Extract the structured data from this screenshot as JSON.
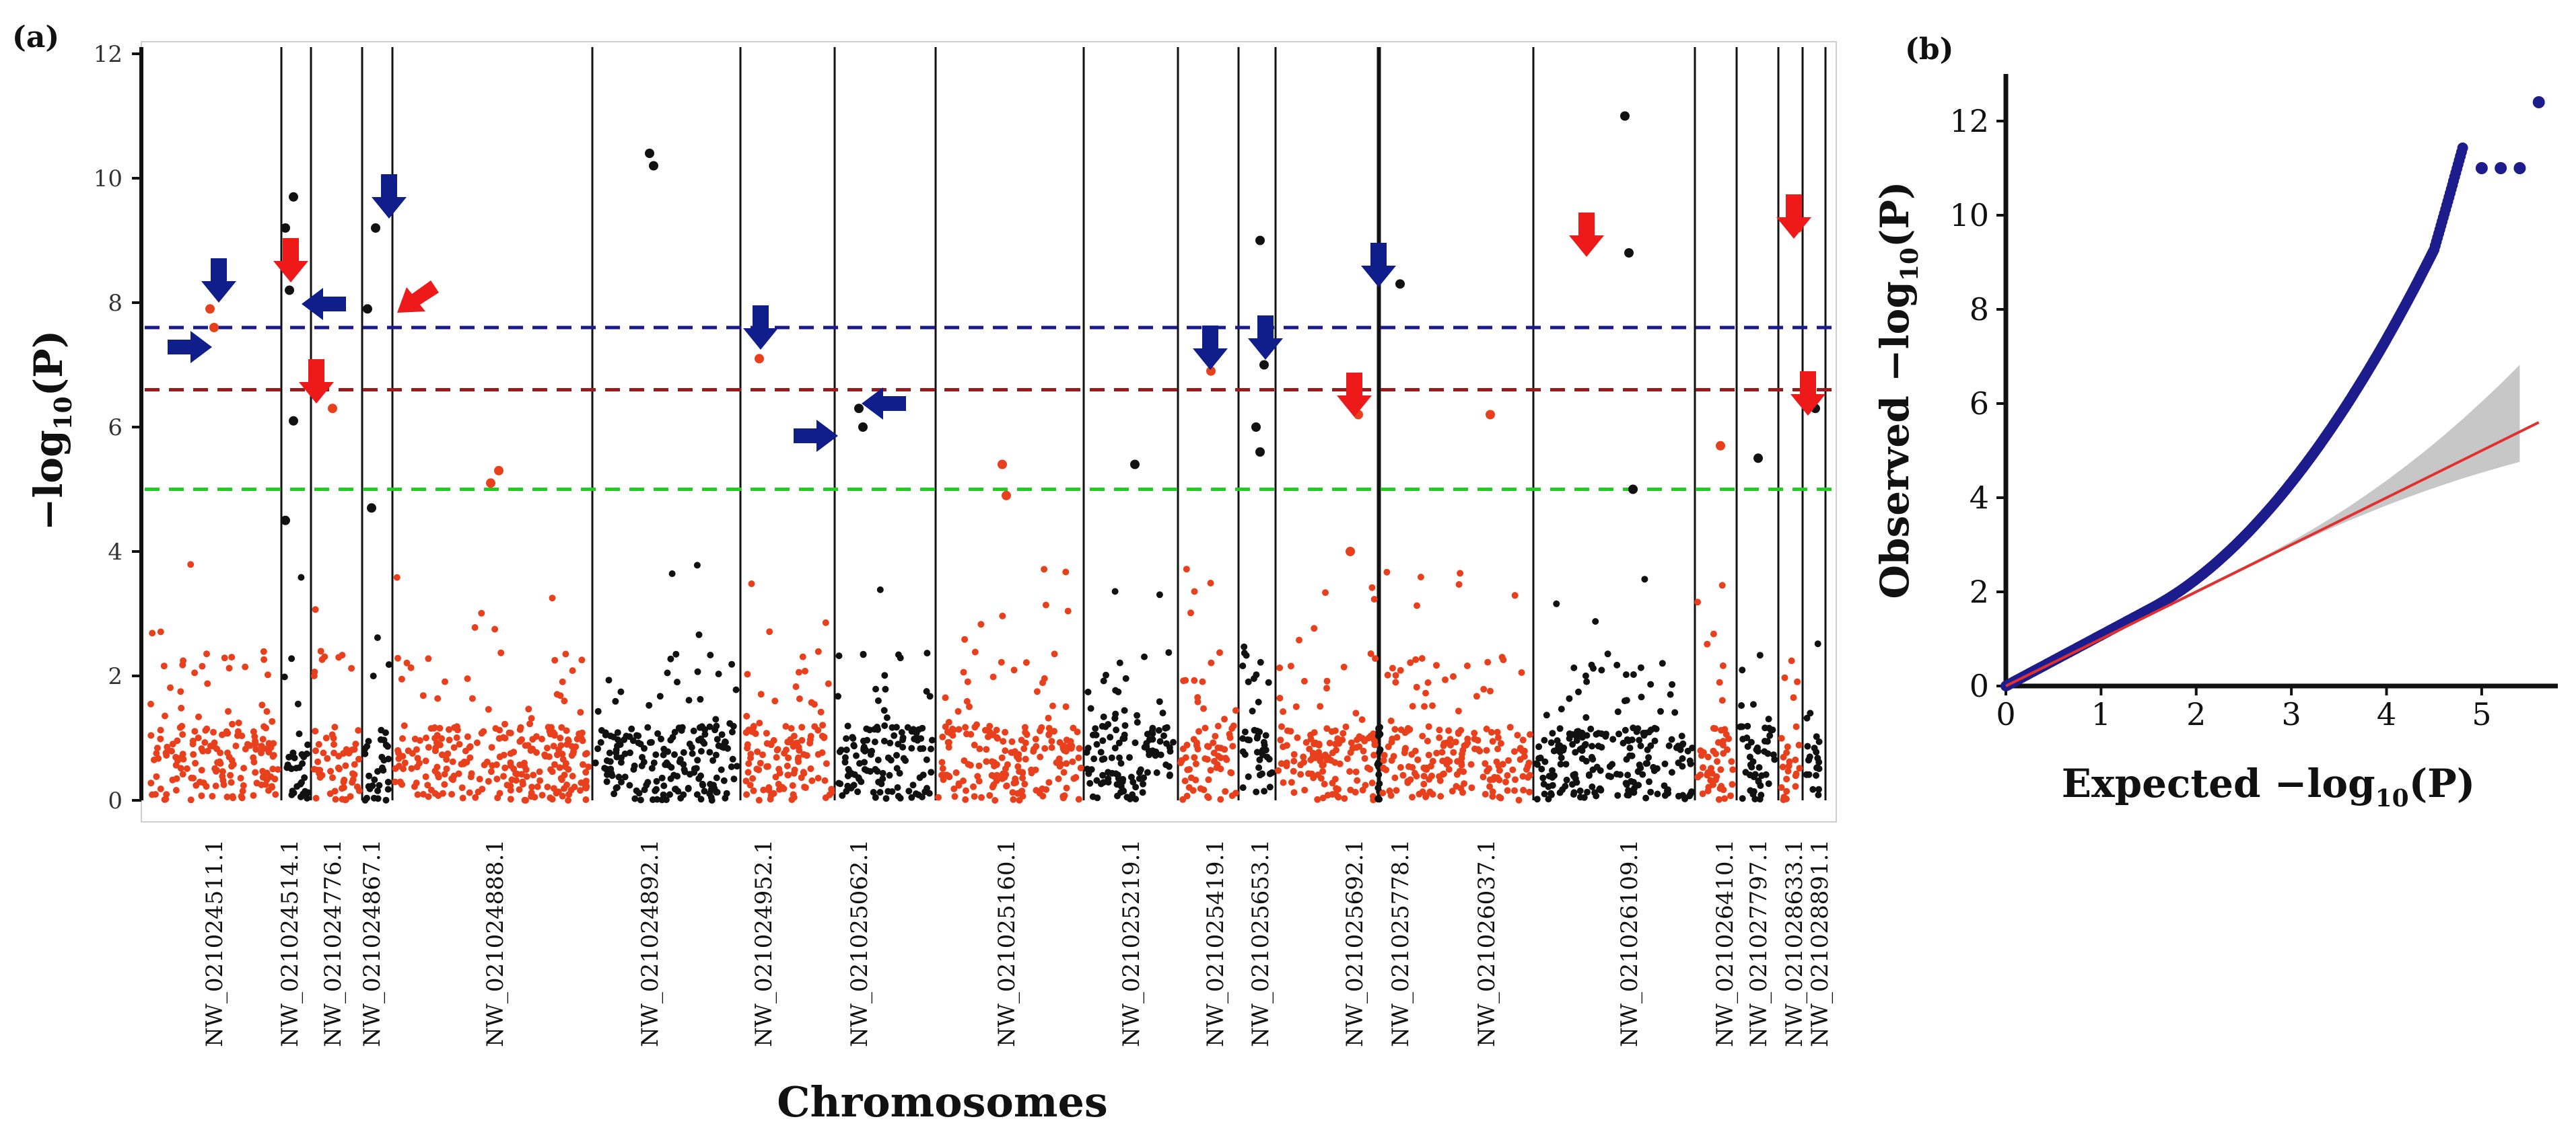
{
  "panels": {
    "a_label": "(a)",
    "b_label": "(b)"
  },
  "manhattan": {
    "ylabel": "−log10(P)",
    "xlabel": "Chromosomes",
    "ylim": [
      0,
      12
    ],
    "yticks": [
      0,
      2,
      4,
      6,
      8,
      10,
      12
    ],
    "thresholds": [
      {
        "name": "blue-threshold",
        "value": 7.6,
        "color": "#1a1a8c"
      },
      {
        "name": "red-threshold",
        "value": 6.6,
        "color": "#9b1b1b"
      },
      {
        "name": "green-threshold",
        "value": 5.0,
        "color": "#22cc22"
      }
    ],
    "colors": {
      "odd": "#e8401c",
      "even": "#111111",
      "blue_arrow": "#0f1e8a",
      "red_arrow": "#ee1a1a"
    },
    "chromosomes": [
      "NW_021024511.1",
      "NW_021024514.1",
      "NW_021024776.1",
      "NW_021024867.1",
      "NW_021024888.1",
      "NW_021024892.1",
      "NW_021024952.1",
      "NW_021025062.1",
      "NW_021025160.1",
      "NW_021025219.1",
      "NW_021025419.1",
      "NW_021025653.1",
      "NW_021025692.1",
      "NW_021025778.1",
      "NW_021026037.1",
      "NW_021026109.1",
      "NW_021026410.1",
      "NW_021027797.1",
      "NW_021028633.1",
      "NW_021028891.1"
    ],
    "significant_points": [
      {
        "chr": "NW_021024511.1",
        "y": 7.9
      },
      {
        "chr": "NW_021024511.1",
        "y": 7.6
      },
      {
        "chr": "NW_021024514.1",
        "y": 9.7
      },
      {
        "chr": "NW_021024514.1",
        "y": 9.2
      },
      {
        "chr": "NW_021024514.1",
        "y": 8.2
      },
      {
        "chr": "NW_021024514.1",
        "y": 6.1
      },
      {
        "chr": "NW_021024514.1",
        "y": 4.5
      },
      {
        "chr": "NW_021024776.1",
        "y": 6.3
      },
      {
        "chr": "NW_021024867.1",
        "y": 9.2
      },
      {
        "chr": "NW_021024867.1",
        "y": 7.9
      },
      {
        "chr": "NW_021024867.1",
        "y": 4.7
      },
      {
        "chr": "NW_021024888.1",
        "y": 5.3
      },
      {
        "chr": "NW_021024888.1",
        "y": 5.1
      },
      {
        "chr": "NW_021024892.1",
        "y": 10.4
      },
      {
        "chr": "NW_021024892.1",
        "y": 10.2
      },
      {
        "chr": "NW_021024952.1",
        "y": 7.1
      },
      {
        "chr": "NW_021025062.1",
        "y": 6.3
      },
      {
        "chr": "NW_021025062.1",
        "y": 6.0
      },
      {
        "chr": "NW_021025160.1",
        "y": 5.4
      },
      {
        "chr": "NW_021025160.1",
        "y": 4.9
      },
      {
        "chr": "NW_021025219.1",
        "y": 5.4
      },
      {
        "chr": "NW_021025419.1",
        "y": 6.9
      },
      {
        "chr": "NW_021025653.1",
        "y": 9.0
      },
      {
        "chr": "NW_021025653.1",
        "y": 7.0
      },
      {
        "chr": "NW_021025653.1",
        "y": 6.0
      },
      {
        "chr": "NW_021025653.1",
        "y": 5.6
      },
      {
        "chr": "NW_021025692.1",
        "y": 6.2
      },
      {
        "chr": "NW_021025692.1",
        "y": 4.0
      },
      {
        "chr": "NW_021025778.1",
        "y": 8.3
      },
      {
        "chr": "NW_021026037.1",
        "y": 6.2
      },
      {
        "chr": "NW_021026109.1",
        "y": 11.0
      },
      {
        "chr": "NW_021026109.1",
        "y": 8.8
      },
      {
        "chr": "NW_021026109.1",
        "y": 5.0
      },
      {
        "chr": "NW_021026410.1",
        "y": 5.7
      },
      {
        "chr": "NW_021027797.1",
        "y": 5.5
      },
      {
        "chr": "NW_021028633.1",
        "y": 9.2
      },
      {
        "chr": "NW_021028891.1",
        "y": 6.3
      }
    ]
  },
  "qqplot": {
    "xlabel": "Expected −log10(P)",
    "ylabel": "Observed −log10(P)",
    "xlim": [
      0,
      5.8
    ],
    "ylim": [
      0,
      13
    ],
    "xticks": [
      0,
      1,
      2,
      3,
      4,
      5
    ],
    "yticks": [
      0,
      2,
      4,
      6,
      8,
      10,
      12
    ],
    "point_color": "#1c1c8c",
    "line_color": "#e03030",
    "band_color": "#bdbdbd",
    "tail_points": [
      [
        5.0,
        11.0
      ],
      [
        5.2,
        11.0
      ],
      [
        5.4,
        11.0
      ],
      [
        5.6,
        12.4
      ]
    ]
  },
  "chart_data": [
    {
      "type": "scatter",
      "title": "",
      "xlabel": "Chromosomes",
      "ylabel": "−log10(P)",
      "ylim": [
        0,
        12
      ],
      "categories": [
        "NW_021024511.1",
        "NW_021024514.1",
        "NW_021024776.1",
        "NW_021024867.1",
        "NW_021024888.1",
        "NW_021024892.1",
        "NW_021024952.1",
        "NW_021025062.1",
        "NW_021025160.1",
        "NW_021025219.1",
        "NW_021025419.1",
        "NW_021025653.1",
        "NW_021025692.1",
        "NW_021025778.1",
        "NW_021026037.1",
        "NW_021026109.1",
        "NW_021026410.1",
        "NW_021027797.1",
        "NW_021028633.1",
        "NW_021028891.1"
      ],
      "thresholds": [
        7.6,
        6.6,
        5.0
      ],
      "grid": false
    },
    {
      "type": "scatter",
      "title": "",
      "xlabel": "Expected −log10(P)",
      "ylabel": "Observed −log10(P)",
      "xlim": [
        0,
        5.8
      ],
      "ylim": [
        0,
        13
      ],
      "grid": false
    }
  ]
}
